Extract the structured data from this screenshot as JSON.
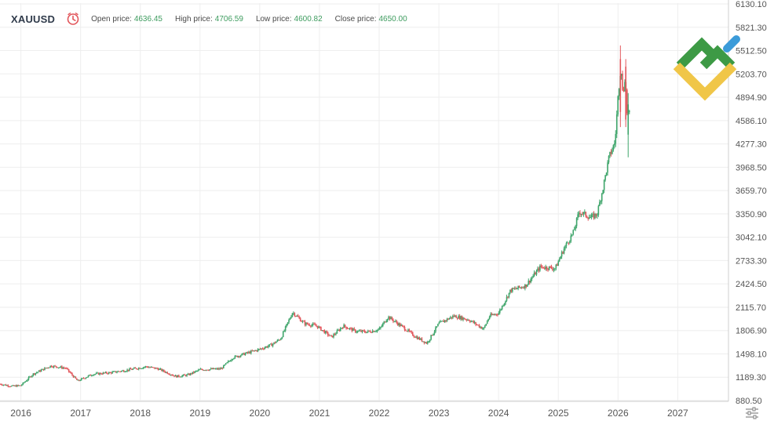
{
  "header": {
    "symbol": "XAUUSD",
    "open_label": "Open price:",
    "open_value": "4636.45",
    "high_label": "High price:",
    "high_value": "4706.59",
    "low_label": "Low price:",
    "low_value": "4600.82",
    "close_label": "Close price:",
    "close_value": "4650.00"
  },
  "icons": {
    "clock": "clock-icon",
    "settings": "sliders-icon",
    "logo": "brand-logo"
  },
  "colors": {
    "up": "#3fa56b",
    "down": "#e2575c",
    "grid": "#eeeeee",
    "axis_text": "#555555",
    "logo_green": "#3d9a45",
    "logo_yellow": "#f0c648",
    "logo_blue": "#3b9bd9"
  },
  "chart_data": {
    "type": "candlestick",
    "title": "XAUUSD",
    "y_ticks": [
      "6130.10",
      "5821.30",
      "5512.50",
      "5203.70",
      "4894.90",
      "4586.10",
      "4277.30",
      "3968.50",
      "3659.70",
      "3350.90",
      "3042.10",
      "2733.30",
      "2424.50",
      "2115.70",
      "1806.90",
      "1498.10",
      "1189.30",
      "880.50"
    ],
    "ylim": [
      880.5,
      6130.1
    ],
    "x_ticks": [
      "2016",
      "2017",
      "2018",
      "2019",
      "2020",
      "2021",
      "2022",
      "2023",
      "2024",
      "2025",
      "2026",
      "2027"
    ],
    "xlim": [
      2015.65,
      2027.85
    ],
    "grid": true,
    "series": [
      {
        "price_path": [
          [
            2015.65,
            1100
          ],
          [
            2015.85,
            1070
          ],
          [
            2016.0,
            1080
          ],
          [
            2016.2,
            1230
          ],
          [
            2016.5,
            1340
          ],
          [
            2016.75,
            1310
          ],
          [
            2016.95,
            1140
          ],
          [
            2017.2,
            1230
          ],
          [
            2017.5,
            1250
          ],
          [
            2017.75,
            1280
          ],
          [
            2018.1,
            1330
          ],
          [
            2018.3,
            1300
          ],
          [
            2018.6,
            1200
          ],
          [
            2018.8,
            1220
          ],
          [
            2019.0,
            1290
          ],
          [
            2019.35,
            1300
          ],
          [
            2019.55,
            1450
          ],
          [
            2019.75,
            1500
          ],
          [
            2020.0,
            1560
          ],
          [
            2020.2,
            1620
          ],
          [
            2020.35,
            1700
          ],
          [
            2020.55,
            2050
          ],
          [
            2020.75,
            1900
          ],
          [
            2020.95,
            1870
          ],
          [
            2021.2,
            1720
          ],
          [
            2021.4,
            1870
          ],
          [
            2021.6,
            1800
          ],
          [
            2021.8,
            1790
          ],
          [
            2022.0,
            1820
          ],
          [
            2022.15,
            1990
          ],
          [
            2022.4,
            1850
          ],
          [
            2022.6,
            1730
          ],
          [
            2022.8,
            1640
          ],
          [
            2023.0,
            1900
          ],
          [
            2023.25,
            2000
          ],
          [
            2023.5,
            1950
          ],
          [
            2023.75,
            1830
          ],
          [
            2023.85,
            2000
          ],
          [
            2024.0,
            2040
          ],
          [
            2024.2,
            2340
          ],
          [
            2024.45,
            2400
          ],
          [
            2024.7,
            2650
          ],
          [
            2024.95,
            2630
          ],
          [
            2025.1,
            2900
          ],
          [
            2025.25,
            3100
          ],
          [
            2025.35,
            3380
          ],
          [
            2025.55,
            3300
          ],
          [
            2025.65,
            3350
          ],
          [
            2025.75,
            3700
          ],
          [
            2025.85,
            4100
          ],
          [
            2025.95,
            4300
          ],
          [
            2026.0,
            4900
          ],
          [
            2026.05,
            5350
          ],
          [
            2026.08,
            4900
          ],
          [
            2026.12,
            5200
          ],
          [
            2026.15,
            4700
          ],
          [
            2026.2,
            4650
          ]
        ]
      }
    ]
  }
}
